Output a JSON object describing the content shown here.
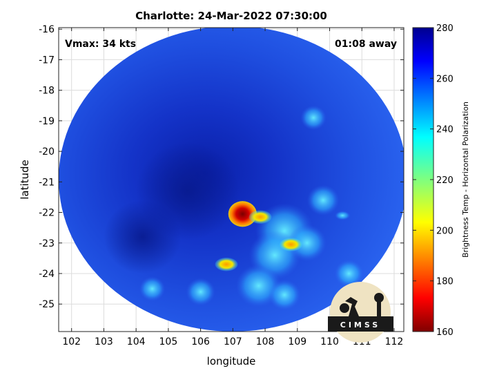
{
  "title": "Charlotte: 24-Mar-2022 07:30:00",
  "vmax_label": "Vmax: 34 kts",
  "away_label": "01:08 away",
  "logo_text": "CIMSS",
  "chart_data": {
    "type": "heatmap",
    "title": "Charlotte: 24-Mar-2022 07:30:00",
    "xlabel": "longitude",
    "ylabel": "latitude",
    "xlim": [
      101.6,
      112.3
    ],
    "ylim": [
      -25.9,
      -15.95
    ],
    "x_ticks": [
      102,
      103,
      104,
      105,
      106,
      107,
      108,
      109,
      110,
      111,
      112
    ],
    "y_ticks": [
      -16,
      -17,
      -18,
      -19,
      -20,
      -21,
      -22,
      -23,
      -24,
      -25
    ],
    "grid": true,
    "colorbar": {
      "label": "Brightness Temp - Horizontal Polarization",
      "min": 160,
      "max": 280,
      "ticks": [
        160,
        180,
        200,
        220,
        240,
        260,
        280
      ],
      "colormap": "jet"
    },
    "swath": {
      "center": [
        107.0,
        -20.9
      ],
      "radius_lon": 5.4,
      "radius_lat": 5.0
    },
    "features": [
      {
        "name": "convective core",
        "lon": 107.3,
        "lat": -22.05,
        "value": 172
      },
      {
        "name": "core tail",
        "lon": 107.85,
        "lat": -22.15,
        "value": 195
      },
      {
        "name": "rainband cell",
        "lon": 108.8,
        "lat": -23.05,
        "value": 210
      },
      {
        "name": "small cell",
        "lon": 106.8,
        "lat": -23.7,
        "value": 215
      },
      {
        "name": "east cell",
        "lon": 110.4,
        "lat": -22.1,
        "value": 235
      }
    ]
  }
}
